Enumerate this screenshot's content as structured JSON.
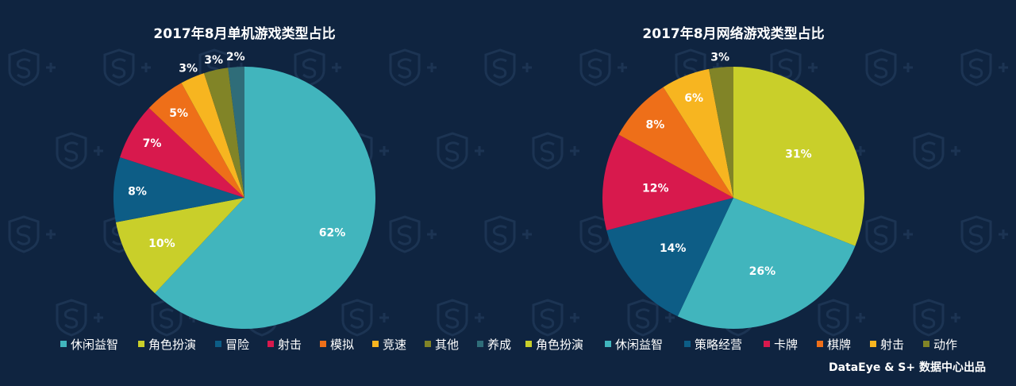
{
  "footer": "DataEye & S+ 数据中心出品",
  "chart_data": [
    {
      "type": "pie",
      "title": "2017年8月单机游戏类型占比",
      "categories": [
        "休闲益智",
        "角色扮演",
        "冒险",
        "射击",
        "模拟",
        "竞速",
        "其他",
        "养成"
      ],
      "values": [
        62,
        10,
        8,
        7,
        5,
        3,
        3,
        2
      ],
      "labels": [
        "62%",
        "10%",
        "8%",
        "7%",
        "5%",
        "3%",
        "3%",
        "2%"
      ],
      "colors": [
        "#41b5bd",
        "#c9cf2a",
        "#0d5d86",
        "#d8194d",
        "#ee6f19",
        "#f7b520",
        "#818427",
        "#2f6d79"
      ],
      "legend": "bottom"
    },
    {
      "type": "pie",
      "title": "2017年8月网络游戏类型占比",
      "categories": [
        "角色扮演",
        "休闲益智",
        "策略经营",
        "卡牌",
        "棋牌",
        "射击",
        "动作"
      ],
      "values": [
        31,
        26,
        14,
        12,
        8,
        6,
        3
      ],
      "labels": [
        "31%",
        "26%",
        "14%",
        "12%",
        "8%",
        "6%",
        "3%"
      ],
      "colors": [
        "#c9cf2a",
        "#41b5bd",
        "#0d5d86",
        "#d8194d",
        "#ee6f19",
        "#f7b520",
        "#818427"
      ],
      "legend": "bottom"
    }
  ]
}
